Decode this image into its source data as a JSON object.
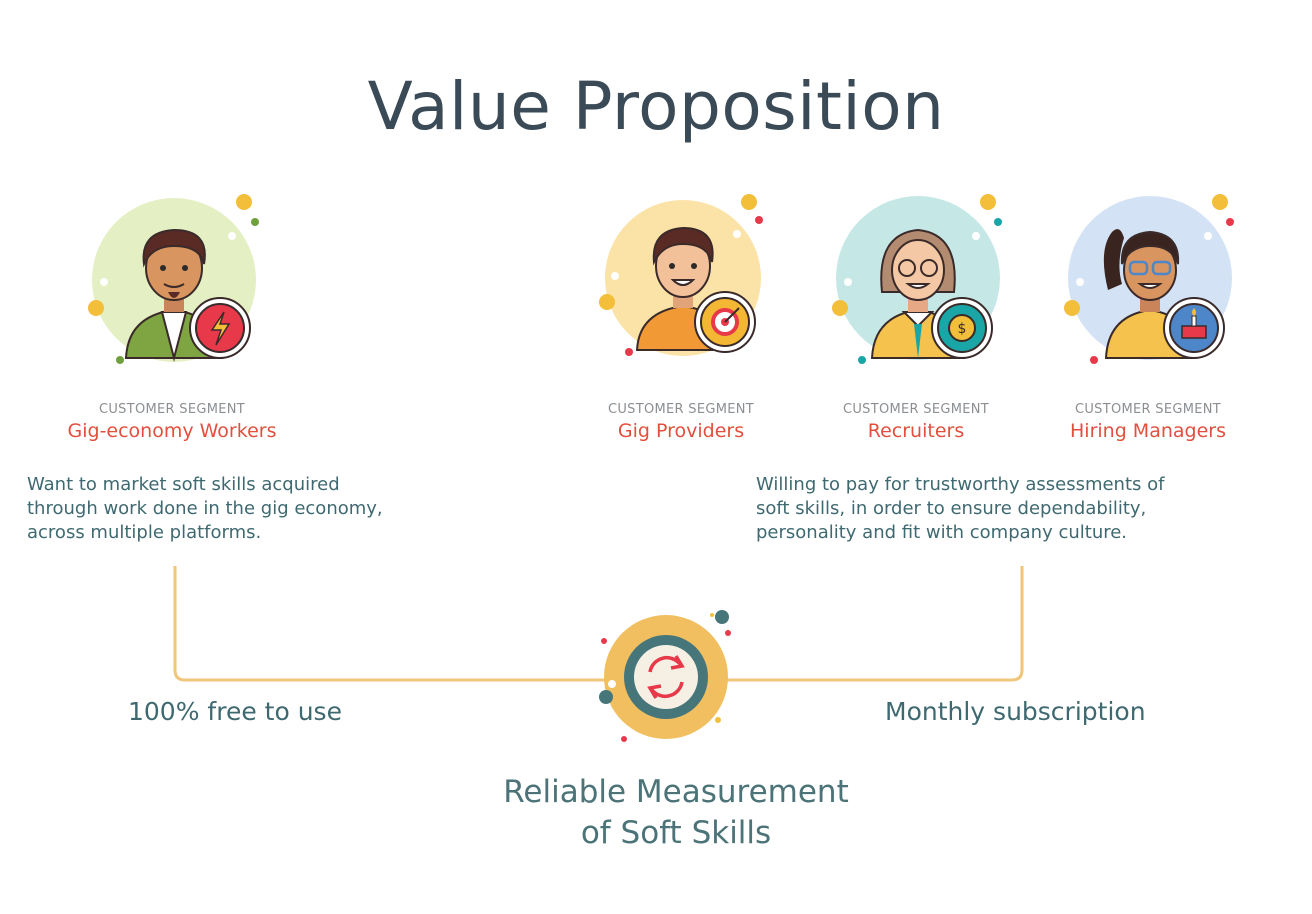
{
  "title": "Value Proposition",
  "segments": [
    {
      "kicker": "CUSTOMER SEGMENT",
      "name": "Gig-economy Workers",
      "icon": "lightning-icon",
      "bg": "#e4efc4",
      "badge": "#e8394a"
    },
    {
      "kicker": "CUSTOMER SEGMENT",
      "name": "Gig Providers",
      "icon": "target-icon",
      "bg": "#fbe2a6",
      "badge": "#f3b733"
    },
    {
      "kicker": "CUSTOMER SEGMENT",
      "name": "Recruiters",
      "icon": "coin-icon",
      "bg": "#c5e8e6",
      "badge": "#1aa5a6"
    },
    {
      "kicker": "CUSTOMER SEGMENT",
      "name": "Hiring Managers",
      "icon": "cake-icon",
      "bg": "#d3e3f5",
      "badge": "#4e87c9"
    }
  ],
  "left_text": [
    "Want to market soft skills acquired",
    "through work done in the gig economy,",
    "across multiple platforms."
  ],
  "right_text": [
    "Willing to pay for trustworthy assessments of",
    "soft skills, in order to ensure dependability,",
    "personality and fit with company culture."
  ],
  "left_price": "100% free to use",
  "right_price": "Monthly subscription",
  "center_label": [
    "Reliable Measurement",
    "of Soft Skills"
  ],
  "center_icon": "refresh-cycle-icon",
  "colors": {
    "connector": "#f1c57a",
    "accent_red": "#e2503d",
    "title": "#3b4a57",
    "teal_text": "#3f6970"
  }
}
